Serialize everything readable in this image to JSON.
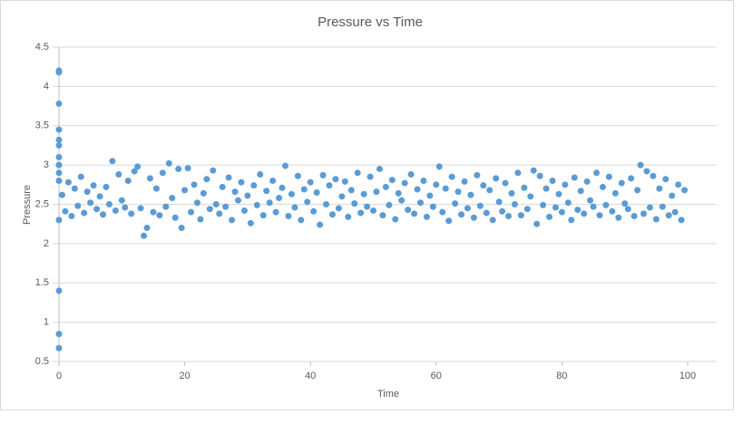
{
  "chart_data": {
    "type": "scatter",
    "title": "Pressure vs Time",
    "x_label": "Time",
    "y_label": "Pressure",
    "color": "#5b9bd5",
    "xlim": [
      0,
      100
    ],
    "ylim": [
      0.5,
      4.5
    ],
    "xticks": [
      0,
      20,
      40,
      60,
      80,
      100
    ],
    "yticks": [
      0.5,
      1,
      1.5,
      2,
      2.5,
      3,
      3.5,
      4,
      4.5
    ],
    "grid": true,
    "x": [
      0,
      0,
      0,
      0,
      0,
      0,
      0,
      0,
      0,
      0,
      0,
      0,
      0,
      0,
      0.5,
      1,
      1.5,
      2,
      2.5,
      3,
      3.5,
      4,
      4.5,
      5,
      5.5,
      6,
      6.5,
      7,
      7.5,
      8,
      8.5,
      9,
      9.5,
      10,
      10.5,
      11,
      11.5,
      12,
      12.5,
      13,
      13.5,
      14,
      14.5,
      15,
      15.5,
      16,
      16.5,
      17,
      17.5,
      18,
      18.5,
      19,
      19.5,
      20,
      20.5,
      21,
      21.5,
      22,
      22.5,
      23,
      23.5,
      24,
      24.5,
      25,
      25.5,
      26,
      26.5,
      27,
      27.5,
      28,
      28.5,
      29,
      29.5,
      30,
      30.5,
      31,
      31.5,
      32,
      32.5,
      33,
      33.5,
      34,
      34.5,
      35,
      35.5,
      36,
      36.5,
      37,
      37.5,
      38,
      38.5,
      39,
      39.5,
      40,
      40.5,
      41,
      41.5,
      42,
      42.5,
      43,
      43.5,
      44,
      44.5,
      45,
      45.5,
      46,
      46.5,
      47,
      47.5,
      48,
      48.5,
      49,
      49.5,
      50,
      50.5,
      51,
      51.5,
      52,
      52.5,
      53,
      53.5,
      54,
      54.5,
      55,
      55.5,
      56,
      56.5,
      57,
      57.5,
      58,
      58.5,
      59,
      59.5,
      60,
      60.5,
      61,
      61.5,
      62,
      62.5,
      63,
      63.5,
      64,
      64.5,
      65,
      65.5,
      66,
      66.5,
      67,
      67.5,
      68,
      68.5,
      69,
      69.5,
      70,
      70.5,
      71,
      71.5,
      72,
      72.5,
      73,
      73.5,
      74,
      74.5,
      75,
      75.5,
      76,
      76.5,
      77,
      77.5,
      78,
      78.5,
      79,
      79.5,
      80,
      80.5,
      81,
      81.5,
      82,
      82.5,
      83,
      83.5,
      84,
      84.5,
      85,
      85.5,
      86,
      86.5,
      87,
      87.5,
      88,
      88.5,
      89,
      89.5,
      90,
      90.5,
      91,
      91.5,
      92,
      92.5,
      93,
      93.5,
      94,
      94.5,
      95,
      95.5,
      96,
      96.5,
      97,
      97.5,
      98,
      98.5,
      99,
      99.5
    ],
    "y": [
      4.18,
      4.2,
      3.78,
      3.45,
      3.32,
      3.25,
      3.1,
      3.0,
      2.9,
      2.8,
      2.3,
      1.4,
      0.85,
      0.67,
      2.62,
      2.41,
      2.78,
      2.35,
      2.7,
      2.48,
      2.85,
      2.39,
      2.66,
      2.52,
      2.74,
      2.44,
      2.6,
      2.37,
      2.72,
      2.5,
      3.05,
      2.42,
      2.88,
      2.55,
      2.46,
      2.8,
      2.38,
      2.92,
      2.98,
      2.45,
      2.1,
      2.2,
      2.83,
      2.4,
      2.7,
      2.36,
      2.9,
      2.47,
      3.02,
      2.58,
      2.33,
      2.95,
      2.2,
      2.68,
      2.96,
      2.4,
      2.75,
      2.52,
      2.31,
      2.64,
      2.82,
      2.44,
      2.93,
      2.5,
      2.38,
      2.72,
      2.47,
      2.84,
      2.3,
      2.66,
      2.55,
      2.78,
      2.42,
      2.61,
      2.26,
      2.74,
      2.49,
      2.88,
      2.36,
      2.67,
      2.52,
      2.8,
      2.4,
      2.58,
      2.71,
      2.99,
      2.35,
      2.63,
      2.46,
      2.86,
      2.3,
      2.69,
      2.53,
      2.78,
      2.41,
      2.65,
      2.24,
      2.87,
      2.5,
      2.74,
      2.37,
      2.82,
      2.45,
      2.6,
      2.79,
      2.34,
      2.68,
      2.51,
      2.9,
      2.39,
      2.63,
      2.47,
      2.85,
      2.42,
      2.66,
      2.95,
      2.36,
      2.72,
      2.49,
      2.81,
      2.31,
      2.64,
      2.55,
      2.77,
      2.43,
      2.88,
      2.38,
      2.69,
      2.52,
      2.8,
      2.34,
      2.61,
      2.47,
      2.75,
      2.98,
      2.4,
      2.7,
      2.29,
      2.85,
      2.51,
      2.66,
      2.37,
      2.79,
      2.45,
      2.62,
      2.33,
      2.87,
      2.48,
      2.74,
      2.39,
      2.68,
      2.3,
      2.83,
      2.53,
      2.41,
      2.77,
      2.35,
      2.64,
      2.5,
      2.9,
      2.36,
      2.71,
      2.44,
      2.6,
      2.93,
      2.25,
      2.86,
      2.49,
      2.7,
      2.34,
      2.8,
      2.46,
      2.63,
      2.4,
      2.75,
      2.52,
      2.3,
      2.84,
      2.43,
      2.67,
      2.38,
      2.79,
      2.55,
      2.47,
      2.9,
      2.36,
      2.72,
      2.49,
      2.85,
      2.41,
      2.64,
      2.33,
      2.77,
      2.51,
      2.44,
      2.83,
      2.35,
      2.68,
      3.0,
      2.38,
      2.92,
      2.46,
      2.86,
      2.31,
      2.7,
      2.47,
      2.82,
      2.36,
      2.61,
      2.4,
      2.75,
      2.3,
      2.68
    ]
  }
}
